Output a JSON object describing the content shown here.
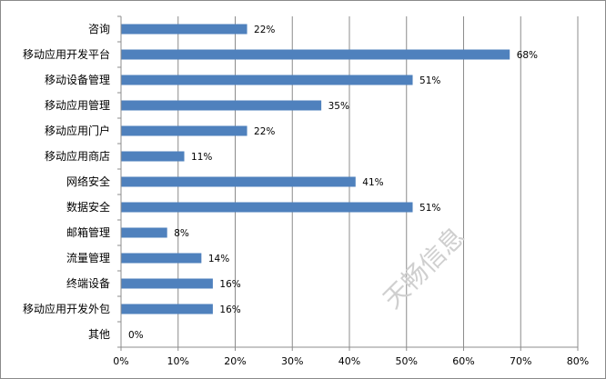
{
  "chart_data": {
    "type": "bar",
    "orientation": "horizontal",
    "categories": [
      "咨询",
      "移动应用开发平台",
      "移动设备管理",
      "移动应用管理",
      "移动应用门户",
      "移动应用商店",
      "网络安全",
      "数据安全",
      "邮箱管理",
      "流量管理",
      "终端设备",
      "移动应用开发外包",
      "其他"
    ],
    "values": [
      22,
      68,
      51,
      35,
      22,
      11,
      41,
      51,
      8,
      14,
      16,
      16,
      0
    ],
    "data_labels": [
      "22%",
      "68%",
      "51%",
      "35%",
      "22%",
      "11%",
      "41%",
      "51%",
      "8%",
      "14%",
      "16%",
      "16%",
      "0%"
    ],
    "xlim": [
      0,
      80
    ],
    "x_ticks": [
      0,
      10,
      20,
      30,
      40,
      50,
      60,
      70,
      80
    ],
    "x_tick_labels": [
      "0%",
      "10%",
      "20%",
      "30%",
      "40%",
      "50%",
      "60%",
      "70%",
      "80%"
    ],
    "grid": "vertical",
    "legend": "none",
    "title": "",
    "xlabel": "",
    "ylabel": "",
    "bar_color": "#4F81BD",
    "grid_color": "#8C8C8C",
    "watermark": "天畅信息"
  }
}
